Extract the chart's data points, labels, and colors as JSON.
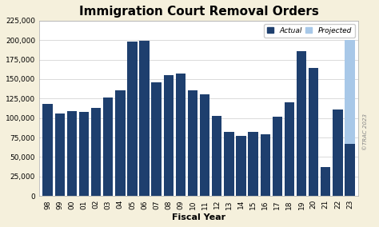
{
  "title": "Immigration Court Removal Orders",
  "xlabel": "Fiscal Year",
  "background_color": "#f5f0dc",
  "plot_bg_color": "#ffffff",
  "bar_color_actual": "#1e3f6e",
  "bar_color_projected": "#a8c8e8",
  "years": [
    1998,
    1999,
    2000,
    2001,
    2002,
    2003,
    2004,
    2005,
    2006,
    2007,
    2008,
    2009,
    2010,
    2011,
    2012,
    2013,
    2014,
    2015,
    2016,
    2017,
    2018,
    2019,
    2020,
    2021,
    2022,
    2023
  ],
  "year_labels": [
    "98",
    "99",
    "00",
    "01",
    "02",
    "03",
    "04",
    "05",
    "06",
    "07",
    "08",
    "09",
    "10",
    "11",
    "12",
    "13",
    "14",
    "15",
    "16",
    "17",
    "18",
    "19",
    "20",
    "21",
    "22",
    "23"
  ],
  "actual_values": [
    118000,
    106000,
    109000,
    108000,
    113000,
    126000,
    136000,
    198000,
    199000,
    146000,
    155000,
    157000,
    136000,
    130000,
    103000,
    82000,
    77000,
    82000,
    79000,
    102000,
    120000,
    186000,
    164000,
    37000,
    111000,
    67000
  ],
  "projected_value": 200000,
  "projected_year": 2023,
  "ylim": [
    0,
    225000
  ],
  "yticks": [
    0,
    25000,
    50000,
    75000,
    100000,
    125000,
    150000,
    175000,
    200000,
    225000
  ],
  "ytick_labels": [
    "0",
    "25,000",
    "50,000",
    "75,000",
    "100,000",
    "125,000",
    "150,000",
    "175,000",
    "200,000",
    "225,000"
  ],
  "watermark": "©TRAC 2023",
  "legend_actual_label": "Actual",
  "legend_projected_label": "Projected",
  "title_fontsize": 11,
  "axis_label_fontsize": 8,
  "tick_fontsize": 6.5
}
